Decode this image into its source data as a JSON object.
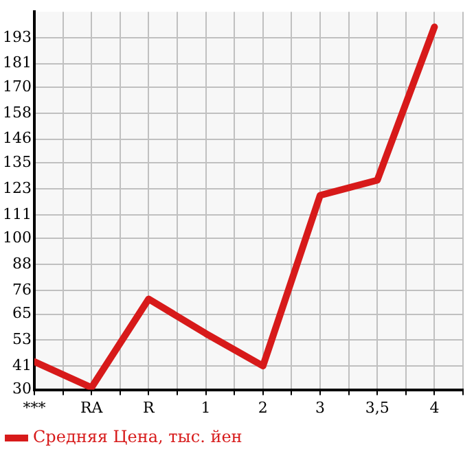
{
  "chart_data": {
    "type": "line",
    "categories": [
      "***",
      "RA",
      "R",
      "1",
      "2",
      "3",
      "3,5",
      "4"
    ],
    "series": [
      {
        "name": "Средняя Цена, тыс. йен",
        "color": "#d71a1a",
        "values": [
          43,
          31,
          72,
          56,
          41,
          120,
          127,
          198
        ]
      }
    ],
    "ylim": [
      30,
      205
    ],
    "yticks": [
      30,
      41,
      53,
      65,
      76,
      88,
      100,
      111,
      123,
      135,
      146,
      158,
      170,
      181,
      193
    ],
    "grid": true,
    "legend": "bottom left",
    "marker": "none",
    "line_style": "solid"
  }
}
